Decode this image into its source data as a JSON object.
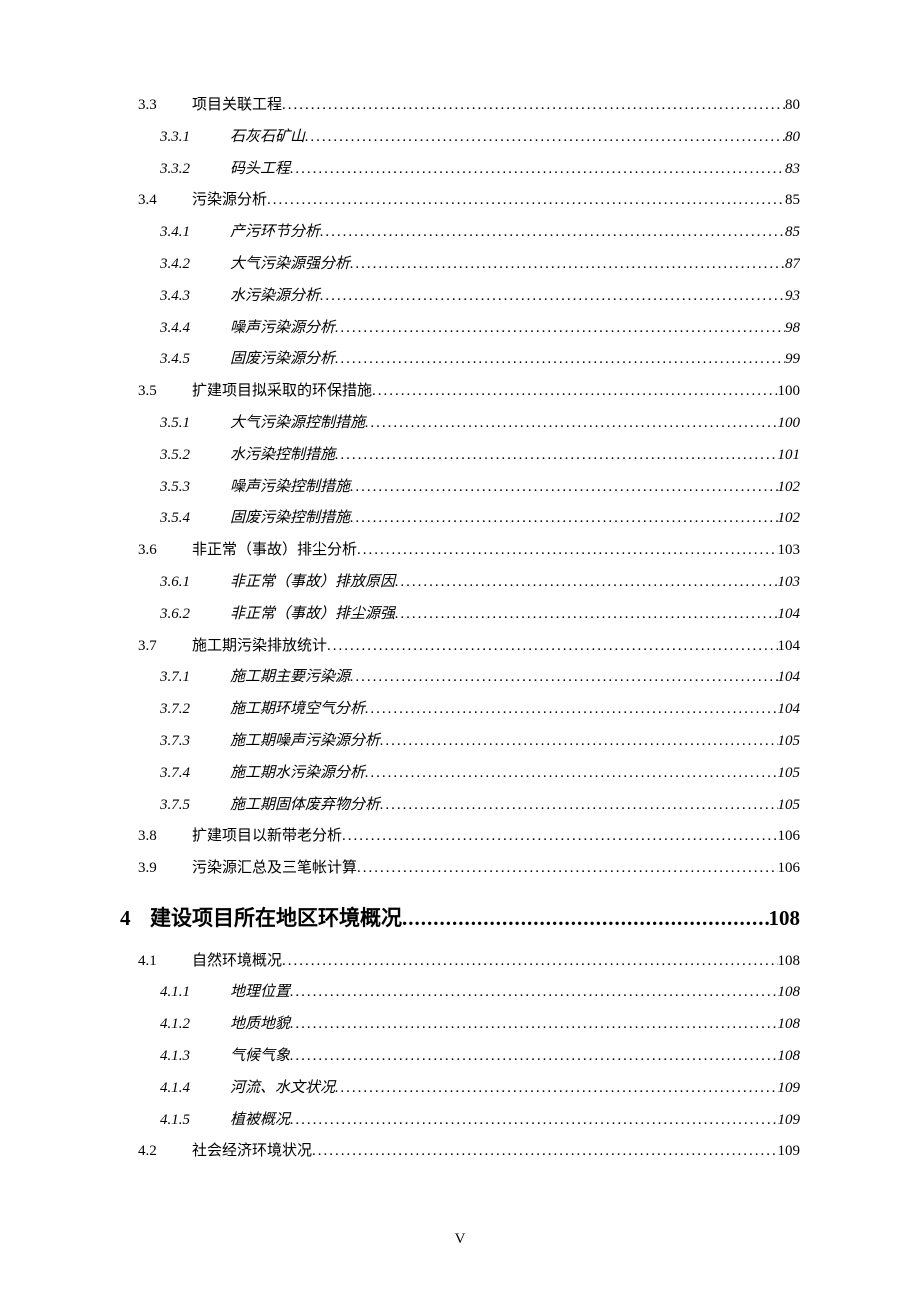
{
  "page_footer": "V",
  "dots_thin": "..................................................................................................................................................................................................",
  "dots_bold": "..............................................................................",
  "toc": [
    {
      "level": 2,
      "num": "3.3",
      "title": "项目关联工程",
      "page": "80"
    },
    {
      "level": 3,
      "num": "3.3.1",
      "title": "石灰石矿山",
      "page": "80"
    },
    {
      "level": 3,
      "num": "3.3.2",
      "title": "码头工程",
      "page": "83"
    },
    {
      "level": 2,
      "num": "3.4",
      "title": "污染源分析",
      "page": "85"
    },
    {
      "level": 3,
      "num": "3.4.1",
      "title": "产污环节分析",
      "page": "85"
    },
    {
      "level": 3,
      "num": "3.4.2",
      "title": "大气污染源强分析",
      "page": "87"
    },
    {
      "level": 3,
      "num": "3.4.3",
      "title": "水污染源分析",
      "page": "93"
    },
    {
      "level": 3,
      "num": "3.4.4",
      "title": "噪声污染源分析",
      "page": "98"
    },
    {
      "level": 3,
      "num": "3.4.5",
      "title": "固废污染源分析",
      "page": "99"
    },
    {
      "level": 2,
      "num": "3.5",
      "title": "扩建项目拟采取的环保措施",
      "page": "100"
    },
    {
      "level": 3,
      "num": "3.5.1",
      "title": "大气污染源控制措施",
      "page": "100"
    },
    {
      "level": 3,
      "num": "3.5.2",
      "title": "水污染控制措施",
      "page": "101"
    },
    {
      "level": 3,
      "num": "3.5.3",
      "title": "噪声污染控制措施",
      "page": "102"
    },
    {
      "level": 3,
      "num": "3.5.4",
      "title": "固废污染控制措施",
      "page": "102"
    },
    {
      "level": 2,
      "num": "3.6",
      "title": "非正常（事故）排尘分析",
      "page": "103"
    },
    {
      "level": 3,
      "num": "3.6.1",
      "title": "非正常（事故）排放原因",
      "page": "103"
    },
    {
      "level": 3,
      "num": "3.6.2",
      "title": "非正常（事故）排尘源强",
      "page": "104"
    },
    {
      "level": 2,
      "num": "3.7",
      "title": "施工期污染排放统计",
      "page": "104"
    },
    {
      "level": 3,
      "num": "3.7.1",
      "title": "施工期主要污染源",
      "page": "104"
    },
    {
      "level": 3,
      "num": "3.7.2",
      "title": "施工期环境空气分析",
      "page": "104"
    },
    {
      "level": 3,
      "num": "3.7.3",
      "title": "施工期噪声污染源分析",
      "page": "105"
    },
    {
      "level": 3,
      "num": "3.7.4",
      "title": "施工期水污染源分析",
      "page": "105"
    },
    {
      "level": 3,
      "num": "3.7.5",
      "title": "施工期固体废弃物分析",
      "page": "105"
    },
    {
      "level": 2,
      "num": "3.8",
      "title": "扩建项目以新带老分析",
      "page": "106"
    },
    {
      "level": 2,
      "num": "3.9",
      "title": "污染源汇总及三笔帐计算",
      "page": "106"
    },
    {
      "level": 1,
      "num": "4",
      "title": "建设项目所在地区环境概况",
      "page": "108"
    },
    {
      "level": 2,
      "num": "4.1",
      "title": "自然环境概况",
      "page": "108"
    },
    {
      "level": 3,
      "num": "4.1.1",
      "title": "地理位置",
      "page": "108"
    },
    {
      "level": 3,
      "num": "4.1.2",
      "title": "地质地貌",
      "page": "108"
    },
    {
      "level": 3,
      "num": "4.1.3",
      "title": "气候气象",
      "page": "108"
    },
    {
      "level": 3,
      "num": "4.1.4",
      "title": "河流、水文状况",
      "page": "109"
    },
    {
      "level": 3,
      "num": "4.1.5",
      "title": "植被概况",
      "page": "109"
    },
    {
      "level": 2,
      "num": "4.2",
      "title": "社会经济环境状况",
      "page": "109"
    }
  ]
}
